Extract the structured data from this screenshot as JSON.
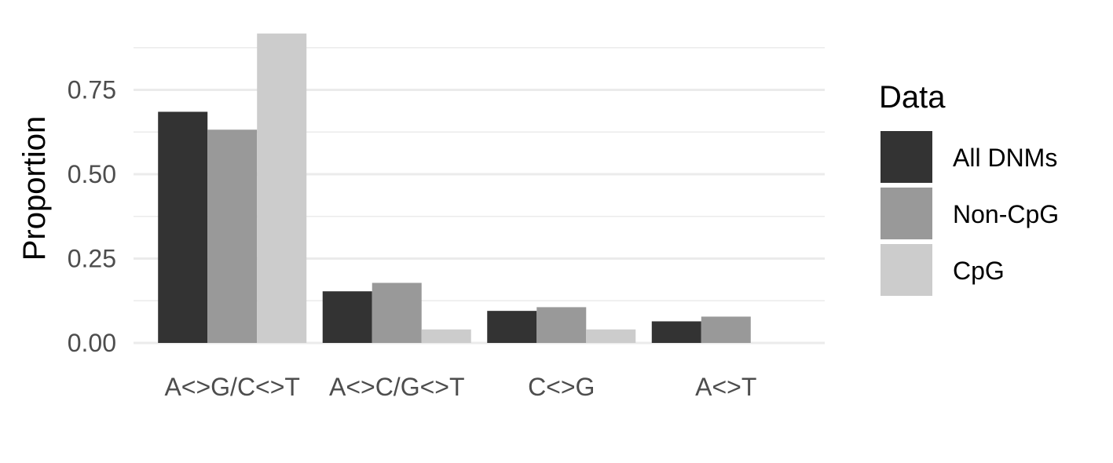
{
  "chart_data": {
    "type": "bar",
    "categories": [
      "A<>G/C<>T",
      "A<>C/G<>T",
      "C<>G",
      "A<>T"
    ],
    "series": [
      {
        "name": "All DNMs",
        "color": "#333333",
        "values": [
          0.685,
          0.153,
          0.095,
          0.064
        ]
      },
      {
        "name": "Non-CpG",
        "color": "#999999",
        "values": [
          0.632,
          0.178,
          0.106,
          0.078
        ]
      },
      {
        "name": "CpG",
        "color": "#cccccc",
        "values": [
          0.917,
          0.04,
          0.04,
          0.0
        ]
      }
    ],
    "xlabel": "",
    "ylabel": "Proportion",
    "ylim": [
      0,
      0.917
    ],
    "yticks": [
      0.0,
      0.25,
      0.5,
      0.75
    ],
    "ytick_labels": [
      "0.00",
      "0.25",
      "0.50",
      "0.75"
    ],
    "legend_title": "Data",
    "legend_position": "right",
    "grid": true
  }
}
